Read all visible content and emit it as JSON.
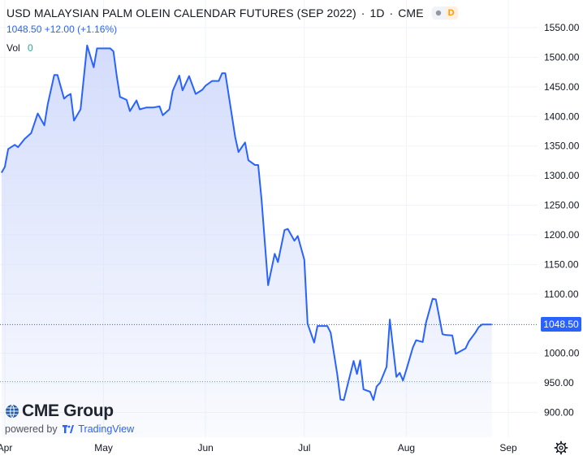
{
  "header": {
    "title": "USD MALAYSIAN PALM OLEIN CALENDAR FUTURES (SEP 2022)",
    "separator": "·",
    "interval": "1D",
    "exchange": "CME",
    "badge_icon": "circle-dot-icon",
    "badge_letter": "D"
  },
  "quote": {
    "text": "1048.50  +12.00 (+1.16%)"
  },
  "volume": {
    "label": "Vol",
    "value": "0"
  },
  "logo": {
    "brand": "CME Group",
    "powered_by": "powered by",
    "provider": "TradingView"
  },
  "price_label": "1048.50",
  "settings_icon": "gear-icon",
  "colors": {
    "line": "#2962ff",
    "fill": "#dbe3fb",
    "axis_text": "#131722",
    "grid": "#f0f3fa"
  },
  "chart_data": {
    "type": "area",
    "y_ticks": [
      900,
      950,
      1000,
      1048.5,
      1100,
      1150,
      1200,
      1250,
      1300,
      1350,
      1400,
      1450,
      1500,
      1550
    ],
    "y_tick_labels": [
      "900.00",
      "950.00",
      "1000.00",
      "",
      "1100.00",
      "1150.00",
      "1200.00",
      "1250.00",
      "1300.00",
      "1350.00",
      "1400.00",
      "1450.00",
      "1500.00",
      "1550.00"
    ],
    "ylim": [
      875,
      1570
    ],
    "xlim": [
      0,
      153
    ],
    "x_ticks": [
      {
        "day": 0,
        "label": "Apr"
      },
      {
        "day": 30,
        "label": "May"
      },
      {
        "day": 61,
        "label": "Jun"
      },
      {
        "day": 91,
        "label": "Jul"
      },
      {
        "day": 122,
        "label": "Aug"
      },
      {
        "day": 153,
        "label": "Sep"
      }
    ],
    "last_price": 1048.5,
    "reference_price": 952,
    "grid": true,
    "series": [
      {
        "x": [
          -1,
          0,
          1,
          3,
          4,
          6,
          8,
          10,
          12,
          13,
          15,
          16,
          18,
          19,
          20,
          21,
          23,
          25,
          27,
          28,
          30,
          32,
          33,
          34,
          35,
          37,
          38,
          40,
          41,
          43,
          45,
          47,
          48,
          50,
          51,
          53,
          54,
          56,
          58,
          60,
          61,
          63,
          65,
          66,
          67,
          70,
          71,
          73,
          74,
          76,
          77,
          78,
          80,
          82,
          83,
          85,
          86,
          88,
          89,
          91,
          92,
          94,
          95,
          96,
          98,
          99,
          101,
          102,
          103,
          106,
          107,
          108,
          109,
          111,
          112,
          113,
          114,
          116,
          117,
          119,
          120,
          121,
          122,
          124,
          125,
          127,
          128,
          130,
          131,
          133,
          134,
          136,
          137,
          140,
          141,
          143,
          144,
          145,
          148
        ],
        "y": [
          1305,
          1315,
          1345,
          1352,
          1348,
          1362,
          1372,
          1405,
          1385,
          1420,
          1470,
          1470,
          1430,
          1435,
          1438,
          1393,
          1412,
          1520,
          1483,
          1515,
          1515,
          1515,
          1510,
          1468,
          1433,
          1428,
          1409,
          1427,
          1412,
          1415,
          1415,
          1417,
          1402,
          1412,
          1443,
          1469,
          1444,
          1468,
          1438,
          1445,
          1452,
          1460,
          1460,
          1473,
          1473,
          1365,
          1340,
          1356,
          1326,
          1318,
          1318,
          1260,
          1115,
          1168,
          1154,
          1208,
          1210,
          1190,
          1198,
          1158,
          1050,
          1018,
          1046,
          1046,
          1046,
          1035,
          965,
          922,
          921,
          987,
          965,
          988,
          939,
          935,
          921,
          944,
          950,
          977,
          1057,
          960,
          967,
          954,
          972,
          1010,
          1022,
          1019,
          1052,
          1092,
          1091,
          1032,
          1031,
          1030,
          999,
          1008,
          1020,
          1035,
          1044,
          1048.5,
          1048.5
        ]
      }
    ]
  }
}
